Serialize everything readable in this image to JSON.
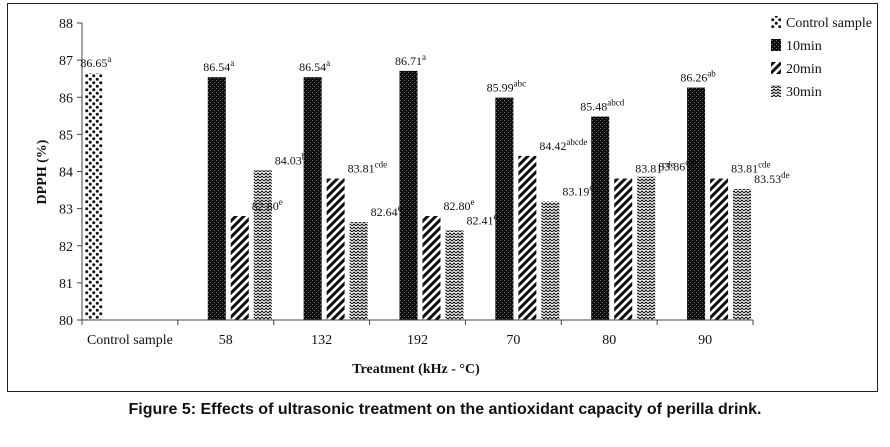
{
  "caption": "Figure 5: Effects of ultrasonic treatment on the antioxidant capacity of perilla drink.",
  "chart_data": {
    "type": "bar",
    "xlabel": "Treatment (kHz - °C)",
    "ylabel": "DPPH (%)",
    "ylim": [
      80,
      88
    ],
    "yticks": [
      80,
      81,
      82,
      83,
      84,
      85,
      86,
      87,
      88
    ],
    "legend_position": "top-right",
    "grid": false,
    "categories": [
      "Control sample",
      "58",
      "132",
      "192",
      "70",
      "80",
      "90"
    ],
    "series": [
      {
        "name": "Control sample",
        "pattern": "dots",
        "values": [
          86.65,
          null,
          null,
          null,
          null,
          null,
          null
        ],
        "labels": [
          [
            "86.65",
            "a"
          ],
          null,
          null,
          null,
          null,
          null,
          null
        ]
      },
      {
        "name": "10min",
        "pattern": "dense",
        "values": [
          null,
          86.54,
          86.54,
          86.71,
          85.99,
          85.48,
          86.26
        ],
        "labels": [
          null,
          [
            "86.54",
            "a"
          ],
          [
            "86.54",
            "a"
          ],
          [
            "86.71",
            "a"
          ],
          [
            "85.99",
            "abc"
          ],
          [
            "85.48",
            "abcd"
          ],
          [
            "86.26",
            "ab"
          ]
        ]
      },
      {
        "name": "20min",
        "pattern": "diagonal",
        "values": [
          null,
          82.8,
          83.81,
          82.8,
          84.42,
          83.81,
          83.81
        ],
        "labels": [
          null,
          [
            "82.80",
            "e"
          ],
          [
            "83.81",
            "cde"
          ],
          [
            "82.80",
            "e"
          ],
          [
            "84.42",
            "abcde"
          ],
          [
            "83.81",
            "cde"
          ],
          [
            "83.81",
            "cde"
          ]
        ]
      },
      {
        "name": "30min",
        "pattern": "zigzag",
        "values": [
          null,
          84.03,
          82.64,
          82.41,
          83.19,
          83.86,
          83.53
        ],
        "labels": [
          null,
          [
            "84.03",
            "bcde"
          ],
          [
            "82.64",
            "e"
          ],
          [
            "82.41",
            "e"
          ],
          [
            "83.19",
            "de"
          ],
          [
            "83.86",
            "cde"
          ],
          [
            "83.53",
            "de"
          ]
        ]
      }
    ]
  }
}
